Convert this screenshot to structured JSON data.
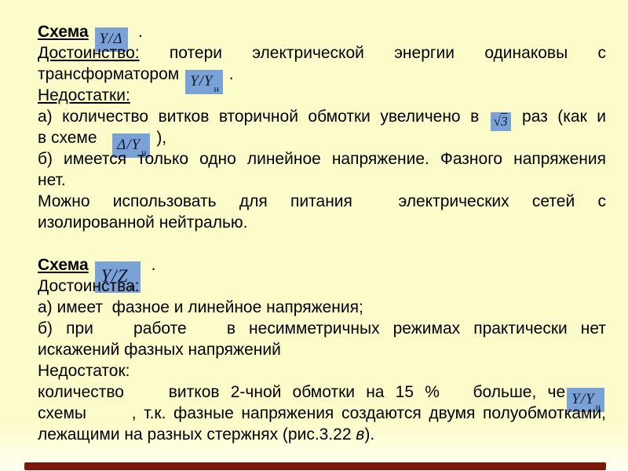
{
  "slide": {
    "colors": {
      "background": "#FCFCCB",
      "text": "#000000",
      "formula_bg": "#7BA2D7",
      "formula_text": "#0D1A33",
      "accent_bar": "#7A190B"
    },
    "lines": [
      {
        "justify": false,
        "runs": [
          {
            "text": "Схема",
            "bold": true,
            "underline": true,
            "name": "heading-schema-1"
          },
          {
            "text": " "
          },
          {
            "formula": true,
            "name": "formula-y-delta",
            "main": "Y/Δ"
          },
          {
            "text": "  ."
          }
        ]
      },
      {
        "justify": true,
        "runs": [
          {
            "text": "Достоинство:",
            "underline": true,
            "name": "label-advantage"
          },
          {
            "text": " потери электрической энергии одинаковы с"
          }
        ]
      },
      {
        "justify": false,
        "runs": [
          {
            "text": "трансформатором "
          },
          {
            "formula": true,
            "name": "formula-y-yn",
            "main": "Y/Y",
            "sub": "н"
          },
          {
            "text": " ."
          }
        ]
      },
      {
        "justify": false,
        "runs": [
          {
            "text": "Недостатки:",
            "underline": true,
            "name": "label-disadvantages"
          }
        ]
      },
      {
        "justify": true,
        "runs": [
          {
            "text": "а) количество витков вторичной обмотки увеличено в "
          },
          {
            "formula": true,
            "name": "formula-sqrt-3",
            "sqrt": true,
            "main": "3",
            "size": "sm"
          },
          {
            "text": " раз (как и"
          }
        ]
      },
      {
        "justify": false,
        "runs": [
          {
            "text": "в схеме   "
          },
          {
            "formula": true,
            "name": "formula-delta-yn",
            "main": "Δ/Y",
            "sub": "н"
          },
          {
            "text": " ),"
          }
        ]
      },
      {
        "justify": true,
        "runs": [
          {
            "text": "б) имеется только одно линейное напряжение. Фазного напряжения"
          }
        ]
      },
      {
        "justify": false,
        "runs": [
          {
            "text": "нет."
          }
        ]
      },
      {
        "justify": true,
        "runs": [
          {
            "text": "Можно использовать для питания  электрических сетей с"
          }
        ]
      },
      {
        "justify": false,
        "runs": [
          {
            "text": "изолированной нейтралью."
          }
        ]
      },
      {
        "blank": true
      },
      {
        "justify": false,
        "runs": [
          {
            "text": "Схема",
            "bold": true,
            "underline": true,
            "name": "heading-schema-2"
          },
          {
            "text": " "
          },
          {
            "formula": true,
            "name": "formula-y-zn",
            "main": "Y/Z",
            "sub": "н",
            "size": "lg"
          },
          {
            "text": "  ."
          }
        ]
      },
      {
        "justify": false,
        "runs": [
          {
            "text": "Достоинства:",
            "name": "label-advantages"
          }
        ]
      },
      {
        "justify": false,
        "runs": [
          {
            "text": "а) имеет  фазное и линейное напряжения;"
          }
        ]
      },
      {
        "justify": true,
        "runs": [
          {
            "text": "б) при   работе   в несимметричных режимах практически нет"
          }
        ]
      },
      {
        "justify": false,
        "runs": [
          {
            "text": "искажений фазных напряжений"
          }
        ]
      },
      {
        "justify": false,
        "runs": [
          {
            "text": "Недостаток:",
            "name": "label-disadvantage"
          }
        ]
      },
      {
        "justify": true,
        "runs": [
          {
            "text": "количество    витков 2-чной обмотки на 15 %   больше, че"
          },
          {
            "formula": true,
            "name": "formula-y-yn-2",
            "main": "Y/Y",
            "sub": "н"
          }
        ]
      },
      {
        "justify": true,
        "runs": [
          {
            "text": "схемы      , т.к. фазные напряжения создаются двумя полуобмотками,"
          }
        ]
      },
      {
        "justify": false,
        "runs": [
          {
            "text": "лежащими на разных стержнях (рис.3.22 "
          },
          {
            "text": "в",
            "italic": true,
            "name": "figure-ref-letter"
          },
          {
            "text": ")."
          }
        ]
      }
    ]
  }
}
